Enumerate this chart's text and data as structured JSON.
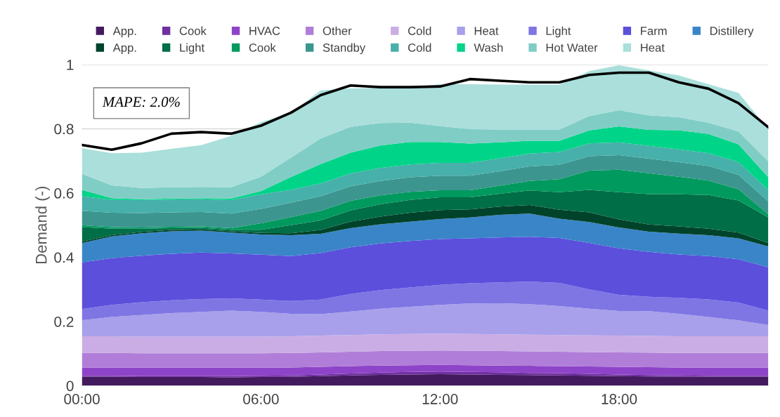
{
  "chart_data": {
    "type": "area",
    "stacked": true,
    "ylabel": "Demand (-)",
    "annotations": [
      "MAPE: 2.0%"
    ],
    "x": [
      0,
      1,
      2,
      3,
      4,
      5,
      6,
      7,
      8,
      9,
      10,
      11,
      12,
      13,
      14,
      15,
      16,
      17,
      18,
      19,
      20,
      21,
      22,
      23
    ],
    "xlim": [
      0,
      23
    ],
    "xticks": [
      {
        "value": 0,
        "label": "00:00"
      },
      {
        "value": 6,
        "label": "06:00"
      },
      {
        "value": 12,
        "label": "12:00"
      },
      {
        "value": 18,
        "label": "18:00"
      }
    ],
    "ylim": [
      0,
      1
    ],
    "yticks": [
      0,
      0.2,
      0.4,
      0.6,
      0.8,
      1
    ],
    "grid": "y",
    "legend": "top",
    "series": [
      {
        "name": "App.",
        "color": "#441a5e",
        "values": [
          0.028,
          0.028,
          0.027,
          0.027,
          0.027,
          0.026,
          0.027,
          0.028,
          0.03,
          0.032,
          0.034,
          0.035,
          0.036,
          0.035,
          0.034,
          0.033,
          0.032,
          0.031,
          0.03,
          0.029,
          0.028,
          0.028,
          0.028,
          0.028
        ]
      },
      {
        "name": "Cook",
        "color": "#7030a0",
        "values": [
          0.003,
          0.003,
          0.003,
          0.003,
          0.003,
          0.004,
          0.004,
          0.004,
          0.005,
          0.006,
          0.007,
          0.008,
          0.008,
          0.008,
          0.008,
          0.007,
          0.007,
          0.006,
          0.005,
          0.004,
          0.004,
          0.003,
          0.003,
          0.003
        ]
      },
      {
        "name": "HVAC",
        "color": "#8e44c8",
        "values": [
          0.026,
          0.026,
          0.026,
          0.026,
          0.026,
          0.026,
          0.025,
          0.025,
          0.024,
          0.023,
          0.022,
          0.021,
          0.021,
          0.021,
          0.021,
          0.022,
          0.022,
          0.023,
          0.024,
          0.025,
          0.025,
          0.026,
          0.026,
          0.026
        ]
      },
      {
        "name": "Other",
        "color": "#b07ed8",
        "values": [
          0.045,
          0.045,
          0.045,
          0.045,
          0.045,
          0.045,
          0.045,
          0.045,
          0.045,
          0.045,
          0.045,
          0.045,
          0.045,
          0.045,
          0.045,
          0.045,
          0.045,
          0.045,
          0.045,
          0.045,
          0.045,
          0.045,
          0.045,
          0.045
        ]
      },
      {
        "name": "Cold",
        "color": "#cbade6",
        "values": [
          0.052,
          0.052,
          0.052,
          0.052,
          0.052,
          0.052,
          0.052,
          0.052,
          0.052,
          0.052,
          0.052,
          0.052,
          0.052,
          0.052,
          0.052,
          0.052,
          0.052,
          0.052,
          0.052,
          0.052,
          0.052,
          0.052,
          0.052,
          0.052
        ]
      },
      {
        "name": "Heat",
        "color": "#a8a0ea",
        "values": [
          0.05,
          0.06,
          0.067,
          0.073,
          0.077,
          0.081,
          0.077,
          0.07,
          0.067,
          0.073,
          0.08,
          0.085,
          0.09,
          0.095,
          0.097,
          0.095,
          0.09,
          0.083,
          0.077,
          0.077,
          0.07,
          0.06,
          0.05,
          0.035
        ]
      },
      {
        "name": "Light",
        "color": "#7f76e4",
        "values": [
          0.035,
          0.038,
          0.04,
          0.04,
          0.04,
          0.038,
          0.038,
          0.04,
          0.045,
          0.055,
          0.058,
          0.06,
          0.062,
          0.063,
          0.065,
          0.07,
          0.072,
          0.06,
          0.05,
          0.045,
          0.05,
          0.055,
          0.055,
          0.045
        ]
      },
      {
        "name": "Farm",
        "color": "#5b4fdc",
        "values": [
          0.145,
          0.145,
          0.145,
          0.145,
          0.145,
          0.14,
          0.14,
          0.14,
          0.145,
          0.145,
          0.145,
          0.145,
          0.143,
          0.14,
          0.14,
          0.14,
          0.14,
          0.145,
          0.145,
          0.14,
          0.135,
          0.135,
          0.135,
          0.135
        ]
      },
      {
        "name": "Distillery",
        "color": "#3a85c8",
        "values": [
          0.06,
          0.068,
          0.07,
          0.07,
          0.068,
          0.065,
          0.063,
          0.065,
          0.06,
          0.06,
          0.06,
          0.06,
          0.062,
          0.065,
          0.07,
          0.072,
          0.06,
          0.065,
          0.065,
          0.063,
          0.065,
          0.065,
          0.065,
          0.065
        ]
      },
      {
        "name": "App.",
        "color": "#00432a",
        "values": [
          0.005,
          0.004,
          0.004,
          0.004,
          0.004,
          0.004,
          0.005,
          0.006,
          0.012,
          0.02,
          0.024,
          0.028,
          0.028,
          0.025,
          0.026,
          0.027,
          0.028,
          0.03,
          0.025,
          0.022,
          0.022,
          0.02,
          0.018,
          0.01
        ]
      },
      {
        "name": "Light",
        "color": "#006e46",
        "values": [
          0.045,
          0.02,
          0.01,
          0.006,
          0.005,
          0.005,
          0.01,
          0.025,
          0.03,
          0.035,
          0.038,
          0.04,
          0.04,
          0.038,
          0.04,
          0.045,
          0.055,
          0.07,
          0.085,
          0.095,
          0.1,
          0.105,
          0.1,
          0.08
        ]
      },
      {
        "name": "Cook",
        "color": "#009a5e",
        "values": [
          0.006,
          0.005,
          0.004,
          0.004,
          0.004,
          0.005,
          0.02,
          0.025,
          0.03,
          0.03,
          0.028,
          0.025,
          0.022,
          0.022,
          0.025,
          0.03,
          0.04,
          0.06,
          0.07,
          0.065,
          0.055,
          0.045,
          0.035,
          0.01
        ]
      },
      {
        "name": "Standby",
        "color": "#3c958f",
        "values": [
          0.045,
          0.045,
          0.045,
          0.045,
          0.045,
          0.045,
          0.045,
          0.045,
          0.045,
          0.045,
          0.045,
          0.045,
          0.045,
          0.045,
          0.045,
          0.045,
          0.045,
          0.045,
          0.045,
          0.045,
          0.045,
          0.045,
          0.045,
          0.04
        ]
      },
      {
        "name": "Cold",
        "color": "#47b0aa",
        "values": [
          0.045,
          0.04,
          0.04,
          0.04,
          0.04,
          0.042,
          0.045,
          0.04,
          0.04,
          0.04,
          0.04,
          0.04,
          0.04,
          0.04,
          0.04,
          0.04,
          0.04,
          0.04,
          0.04,
          0.04,
          0.04,
          0.04,
          0.04,
          0.035
        ]
      },
      {
        "name": "Wash",
        "color": "#00d488",
        "values": [
          0.02,
          0.005,
          0.003,
          0.003,
          0.003,
          0.005,
          0.01,
          0.04,
          0.06,
          0.065,
          0.07,
          0.07,
          0.065,
          0.06,
          0.05,
          0.04,
          0.035,
          0.04,
          0.05,
          0.05,
          0.06,
          0.06,
          0.055,
          0.04
        ]
      },
      {
        "name": "Hot Water",
        "color": "#80cdc6",
        "values": [
          0.05,
          0.04,
          0.035,
          0.035,
          0.035,
          0.035,
          0.045,
          0.06,
          0.08,
          0.08,
          0.07,
          0.06,
          0.05,
          0.045,
          0.04,
          0.035,
          0.035,
          0.045,
          0.05,
          0.045,
          0.04,
          0.035,
          0.04,
          0.05
        ]
      },
      {
        "name": "Heat",
        "color": "#aadfdb",
        "values": [
          0.08,
          0.1,
          0.11,
          0.12,
          0.13,
          0.16,
          0.17,
          0.14,
          0.15,
          0.12,
          0.11,
          0.11,
          0.13,
          0.14,
          0.14,
          0.14,
          0.14,
          0.14,
          0.14,
          0.14,
          0.13,
          0.12,
          0.12,
          0.1
        ]
      },
      {
        "type": "line",
        "color": "#000000",
        "values": [
          0.75,
          0.735,
          0.755,
          0.785,
          0.79,
          0.785,
          0.81,
          0.85,
          0.905,
          0.935,
          0.93,
          0.93,
          0.932,
          0.955,
          0.95,
          0.945,
          0.945,
          0.968,
          0.975,
          0.975,
          0.945,
          0.925,
          0.88,
          0.805
        ]
      }
    ]
  }
}
